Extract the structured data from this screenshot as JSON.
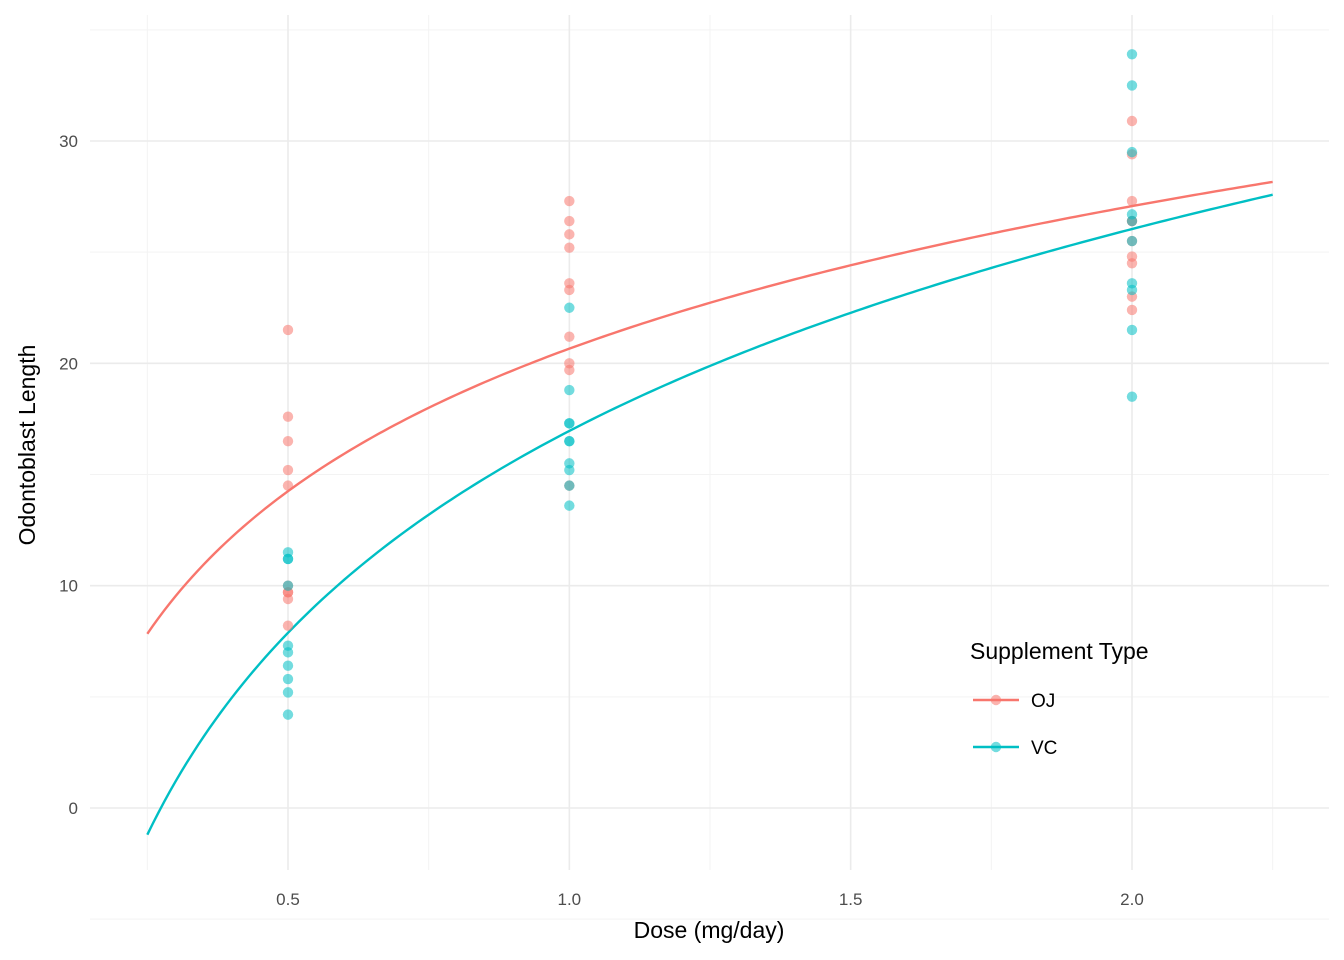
{
  "chart_data": {
    "type": "scatter",
    "xlabel": "Dose (mg/day)",
    "ylabel": "Odontoblast Length",
    "xlim": [
      0.2,
      2.3
    ],
    "ylim": [
      -2.8,
      35.5
    ],
    "x_ticks": [
      0.5,
      1.0,
      1.5,
      2.0
    ],
    "x_tick_labels": [
      "0.5",
      "1.0",
      "1.5",
      "2.0"
    ],
    "y_ticks": [
      0,
      10,
      20,
      30
    ],
    "y_tick_labels": [
      "0",
      "10",
      "20",
      "30"
    ],
    "grid": true,
    "legend": {
      "title": "Supplement Type",
      "position": "bottom-right"
    },
    "fit": {
      "model": "logarithmic",
      "x_range": [
        0.25,
        2.25
      ]
    },
    "series": [
      {
        "name": "OJ",
        "color": "#F8766D",
        "points": [
          [
            0.5,
            15.2
          ],
          [
            0.5,
            21.5
          ],
          [
            0.5,
            17.6
          ],
          [
            0.5,
            9.7
          ],
          [
            0.5,
            14.5
          ],
          [
            0.5,
            10.0
          ],
          [
            0.5,
            8.2
          ],
          [
            0.5,
            9.4
          ],
          [
            0.5,
            16.5
          ],
          [
            0.5,
            9.7
          ],
          [
            1.0,
            19.7
          ],
          [
            1.0,
            23.3
          ],
          [
            1.0,
            23.6
          ],
          [
            1.0,
            26.4
          ],
          [
            1.0,
            20.0
          ],
          [
            1.0,
            25.2
          ],
          [
            1.0,
            25.8
          ],
          [
            1.0,
            21.2
          ],
          [
            1.0,
            14.5
          ],
          [
            1.0,
            27.3
          ],
          [
            2.0,
            25.5
          ],
          [
            2.0,
            26.4
          ],
          [
            2.0,
            22.4
          ],
          [
            2.0,
            24.5
          ],
          [
            2.0,
            24.8
          ],
          [
            2.0,
            30.9
          ],
          [
            2.0,
            26.4
          ],
          [
            2.0,
            27.3
          ],
          [
            2.0,
            29.4
          ],
          [
            2.0,
            23.0
          ]
        ],
        "fit_curve": {
          "a": 20.66,
          "b": 9.25
        }
      },
      {
        "name": "VC",
        "color": "#00BFC4",
        "points": [
          [
            0.5,
            4.2
          ],
          [
            0.5,
            11.5
          ],
          [
            0.5,
            7.3
          ],
          [
            0.5,
            5.8
          ],
          [
            0.5,
            6.4
          ],
          [
            0.5,
            10.0
          ],
          [
            0.5,
            11.2
          ],
          [
            0.5,
            11.2
          ],
          [
            0.5,
            5.2
          ],
          [
            0.5,
            7.0
          ],
          [
            1.0,
            16.5
          ],
          [
            1.0,
            16.5
          ],
          [
            1.0,
            15.2
          ],
          [
            1.0,
            17.3
          ],
          [
            1.0,
            22.5
          ],
          [
            1.0,
            17.3
          ],
          [
            1.0,
            13.6
          ],
          [
            1.0,
            14.5
          ],
          [
            1.0,
            18.8
          ],
          [
            1.0,
            15.5
          ],
          [
            2.0,
            23.6
          ],
          [
            2.0,
            18.5
          ],
          [
            2.0,
            33.9
          ],
          [
            2.0,
            25.5
          ],
          [
            2.0,
            26.4
          ],
          [
            2.0,
            32.5
          ],
          [
            2.0,
            26.7
          ],
          [
            2.0,
            21.5
          ],
          [
            2.0,
            23.3
          ],
          [
            2.0,
            29.5
          ]
        ],
        "fit_curve": {
          "a": 16.96,
          "b": 13.1
        }
      }
    ]
  }
}
